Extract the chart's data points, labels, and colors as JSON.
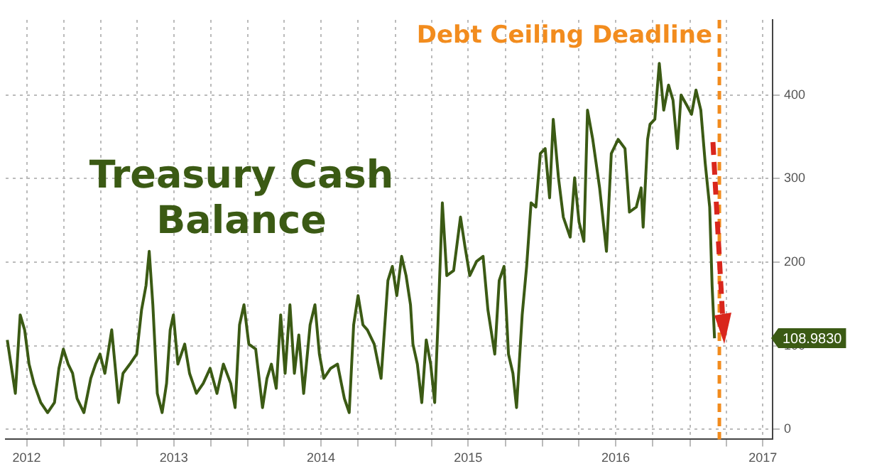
{
  "chart_data": {
    "type": "line",
    "title": "Treasury Cash Balance",
    "x": [
      "2012-05-14",
      "2012-05-23",
      "2012-06-03",
      "2012-06-15",
      "2012-06-26",
      "2012-07-07",
      "2012-07-19",
      "2012-08-05",
      "2012-08-22",
      "2012-09-08",
      "2012-09-19",
      "2012-09-30",
      "2012-10-12",
      "2012-10-23",
      "2012-11-03",
      "2012-11-20",
      "2012-12-07",
      "2012-12-19",
      "2012-12-30",
      "2013-01-11",
      "2013-01-28",
      "2013-02-14",
      "2013-02-25",
      "2013-03-14",
      "2013-03-31",
      "2013-04-12",
      "2013-04-23",
      "2013-05-01",
      "2013-05-10",
      "2013-05-21",
      "2013-06-02",
      "2013-06-13",
      "2013-06-22",
      "2013-06-30",
      "2013-07-11",
      "2013-07-28",
      "2013-08-09",
      "2013-08-26",
      "2013-09-12",
      "2013-09-29",
      "2013-10-16",
      "2013-11-01",
      "2013-11-19",
      "2013-11-30",
      "2013-12-11",
      "2013-12-22",
      "2014-01-03",
      "2014-01-20",
      "2014-02-06",
      "2014-02-17",
      "2014-02-28",
      "2014-03-12",
      "2014-03-23",
      "2014-04-03",
      "2014-04-15",
      "2014-04-26",
      "2014-05-07",
      "2014-05-19",
      "2014-06-04",
      "2014-06-16",
      "2014-06-27",
      "2014-07-08",
      "2014-07-25",
      "2014-08-11",
      "2014-08-28",
      "2014-09-09",
      "2014-09-20",
      "2014-10-01",
      "2014-10-13",
      "2014-10-24",
      "2014-11-10",
      "2014-11-27",
      "2014-12-14",
      "2014-12-25",
      "2015-01-05",
      "2015-01-17",
      "2015-01-28",
      "2015-02-08",
      "2015-02-14",
      "2015-02-25",
      "2015-03-08",
      "2015-03-19",
      "2015-03-30",
      "2015-04-09",
      "2015-04-17",
      "2015-04-28",
      "2015-05-09",
      "2015-05-26",
      "2015-06-12",
      "2015-06-23",
      "2015-07-05",
      "2015-07-22",
      "2015-08-07",
      "2015-08-19",
      "2015-09-05",
      "2015-09-16",
      "2015-09-28",
      "2015-10-09",
      "2015-10-20",
      "2015-10-29",
      "2015-11-12",
      "2015-11-23",
      "2015-12-04",
      "2015-12-16",
      "2015-12-27",
      "2016-01-08",
      "2016-01-19",
      "2016-01-28",
      "2016-02-10",
      "2016-02-22",
      "2016-03-10",
      "2016-03-21",
      "2016-04-01",
      "2016-04-13",
      "2016-04-22",
      "2016-05-05",
      "2016-05-22",
      "2016-06-08",
      "2016-06-20",
      "2016-07-07",
      "2016-07-24",
      "2016-08-04",
      "2016-08-21",
      "2016-09-02",
      "2016-09-07",
      "2016-09-18",
      "2016-09-24",
      "2016-10-06",
      "2016-10-17",
      "2016-10-28",
      "2016-11-09",
      "2016-11-20",
      "2016-12-01",
      "2016-12-10",
      "2016-12-24",
      "2017-01-05",
      "2017-01-16",
      "2017-01-28",
      "2017-02-08",
      "2017-02-19",
      "2017-02-25",
      "2017-03-03"
    ],
    "series": [
      {
        "color": "#3b5a14",
        "values": [
          107,
          78,
          43,
          137,
          119,
          78,
          55,
          32,
          20,
          32,
          73,
          96,
          78,
          67,
          37,
          20,
          61,
          78,
          90,
          67,
          119,
          32,
          67,
          78,
          90,
          143,
          172,
          213,
          149,
          43,
          20,
          55,
          119,
          137,
          78,
          102,
          67,
          43,
          55,
          73,
          43,
          78,
          55,
          26,
          125,
          149,
          102,
          96,
          26,
          61,
          78,
          49,
          137,
          67,
          149,
          67,
          113,
          43,
          125,
          149,
          90,
          61,
          73,
          78,
          37,
          20,
          125,
          160,
          125,
          119,
          102,
          61,
          178,
          195,
          160,
          207,
          184,
          149,
          102,
          78,
          32,
          107,
          78,
          32,
          125,
          271,
          184,
          190,
          254,
          219,
          184,
          201,
          207,
          143,
          90,
          178,
          195,
          90,
          67,
          26,
          137,
          195,
          271,
          266,
          330,
          336,
          277,
          371,
          301,
          254,
          230,
          301,
          248,
          225,
          382,
          347,
          289,
          213,
          330,
          347,
          336,
          260,
          266,
          289,
          242,
          347,
          365,
          371,
          438,
          382,
          412,
          394,
          336,
          400,
          388,
          377,
          406,
          382,
          318,
          266,
          172,
          108.983
        ]
      }
    ],
    "xlim": [
      "2012-05-10",
      "2017-07-25"
    ],
    "xticks": [
      {
        "value": "2012-07-01",
        "label": "2012"
      },
      {
        "value": "2012-10-01",
        "label": null
      },
      {
        "value": "2013-01-01",
        "label": null
      },
      {
        "value": "2013-04-01",
        "label": null
      },
      {
        "value": "2013-07-01",
        "label": "2013"
      },
      {
        "value": "2013-10-01",
        "label": null
      },
      {
        "value": "2014-01-01",
        "label": null
      },
      {
        "value": "2014-04-01",
        "label": null
      },
      {
        "value": "2014-07-01",
        "label": "2014"
      },
      {
        "value": "2014-10-01",
        "label": null
      },
      {
        "value": "2015-01-01",
        "label": null
      },
      {
        "value": "2015-04-01",
        "label": null
      },
      {
        "value": "2015-07-01",
        "label": "2015"
      },
      {
        "value": "2015-10-01",
        "label": null
      },
      {
        "value": "2016-01-01",
        "label": null
      },
      {
        "value": "2016-04-01",
        "label": null
      },
      {
        "value": "2016-07-01",
        "label": "2016"
      },
      {
        "value": "2016-10-01",
        "label": null
      },
      {
        "value": "2017-01-01",
        "label": null
      },
      {
        "value": "2017-04-01",
        "label": null
      },
      {
        "value": "2017-07-01",
        "label": "2017"
      }
    ],
    "ylim": [
      -12,
      490
    ],
    "yticks": [
      0,
      100,
      200,
      300,
      400
    ],
    "ref_lines": [
      {
        "axis": "x",
        "value": "2017-03-15",
        "label": "Debt Ceiling Deadline",
        "color": "#f28c1e",
        "line_style": "dashed"
      }
    ],
    "annotations": [
      "108.9830"
    ],
    "grid": true,
    "legend": false,
    "marker": "none",
    "line_style": "solid"
  }
}
